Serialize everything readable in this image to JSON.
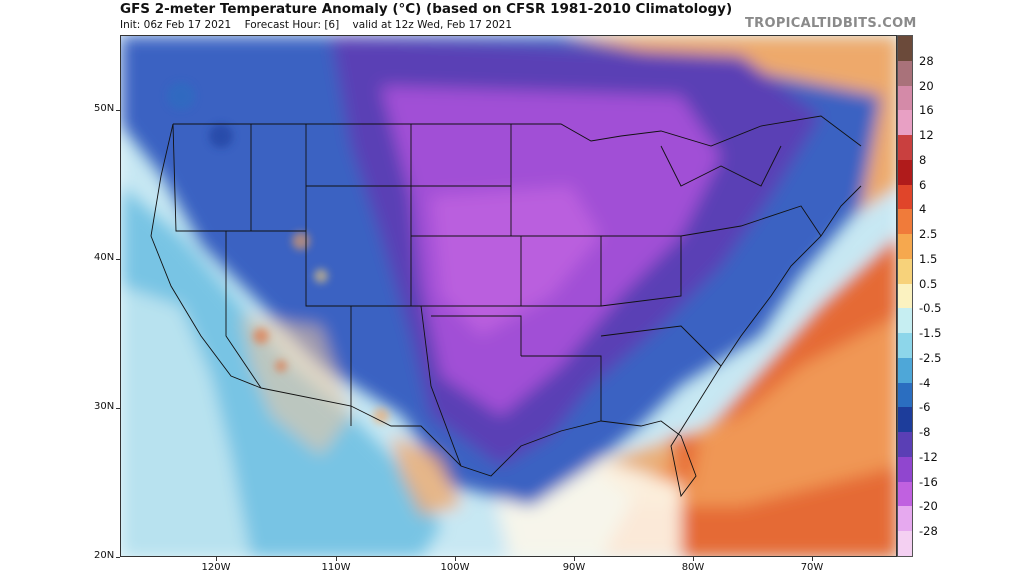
{
  "header": {
    "title": "GFS 2-meter Temperature Anomaly (°C) (based on CFSR 1981-2010 Climatology)",
    "init": "Init: 06z Feb 17 2021",
    "forecast_hour": "Forecast Hour: [6]",
    "valid": "valid at 12z Wed, Feb 17 2021",
    "brand": "TROPICALTIDBITS.COM"
  },
  "axes": {
    "lat_labels": [
      "50N",
      "40N",
      "30N",
      "20N"
    ],
    "lon_labels": [
      "120W",
      "110W",
      "100W",
      "90W",
      "80W",
      "70W"
    ]
  },
  "colorbar": {
    "labels": [
      "28",
      "20",
      "16",
      "12",
      "8",
      "6",
      "4",
      "2.5",
      "1.5",
      "0.5",
      "-0.5",
      "-1.5",
      "-2.5",
      "-4",
      "-6",
      "-8",
      "-12",
      "-16",
      "-20",
      "-28"
    ],
    "colors": [
      "#6b4a3a",
      "#a9727a",
      "#d48aa8",
      "#e8a0c4",
      "#c9403f",
      "#b01b1b",
      "#e0452a",
      "#f07b3a",
      "#f6a84e",
      "#f7d27a",
      "#fbf2c0",
      "#c6eef2",
      "#8dd6ea",
      "#4ea7d8",
      "#2b6ec0",
      "#1d3d9b",
      "#5a3fb5",
      "#9046cf",
      "#c061e0",
      "#e6a9ef",
      "#f4d0f2"
    ]
  },
  "map": {
    "variable": "2-meter temperature anomaly",
    "region": "Contiguous United States",
    "anomaly_colors": {
      "strong_cold": "#a14fd6",
      "moderate_cold": "#5a3fb5",
      "cold": "#3a62c2",
      "cool": "#78c4e4",
      "near_normal": "#e6f5f8",
      "warm": "#f3a35d",
      "hot": "#e56a35"
    }
  }
}
